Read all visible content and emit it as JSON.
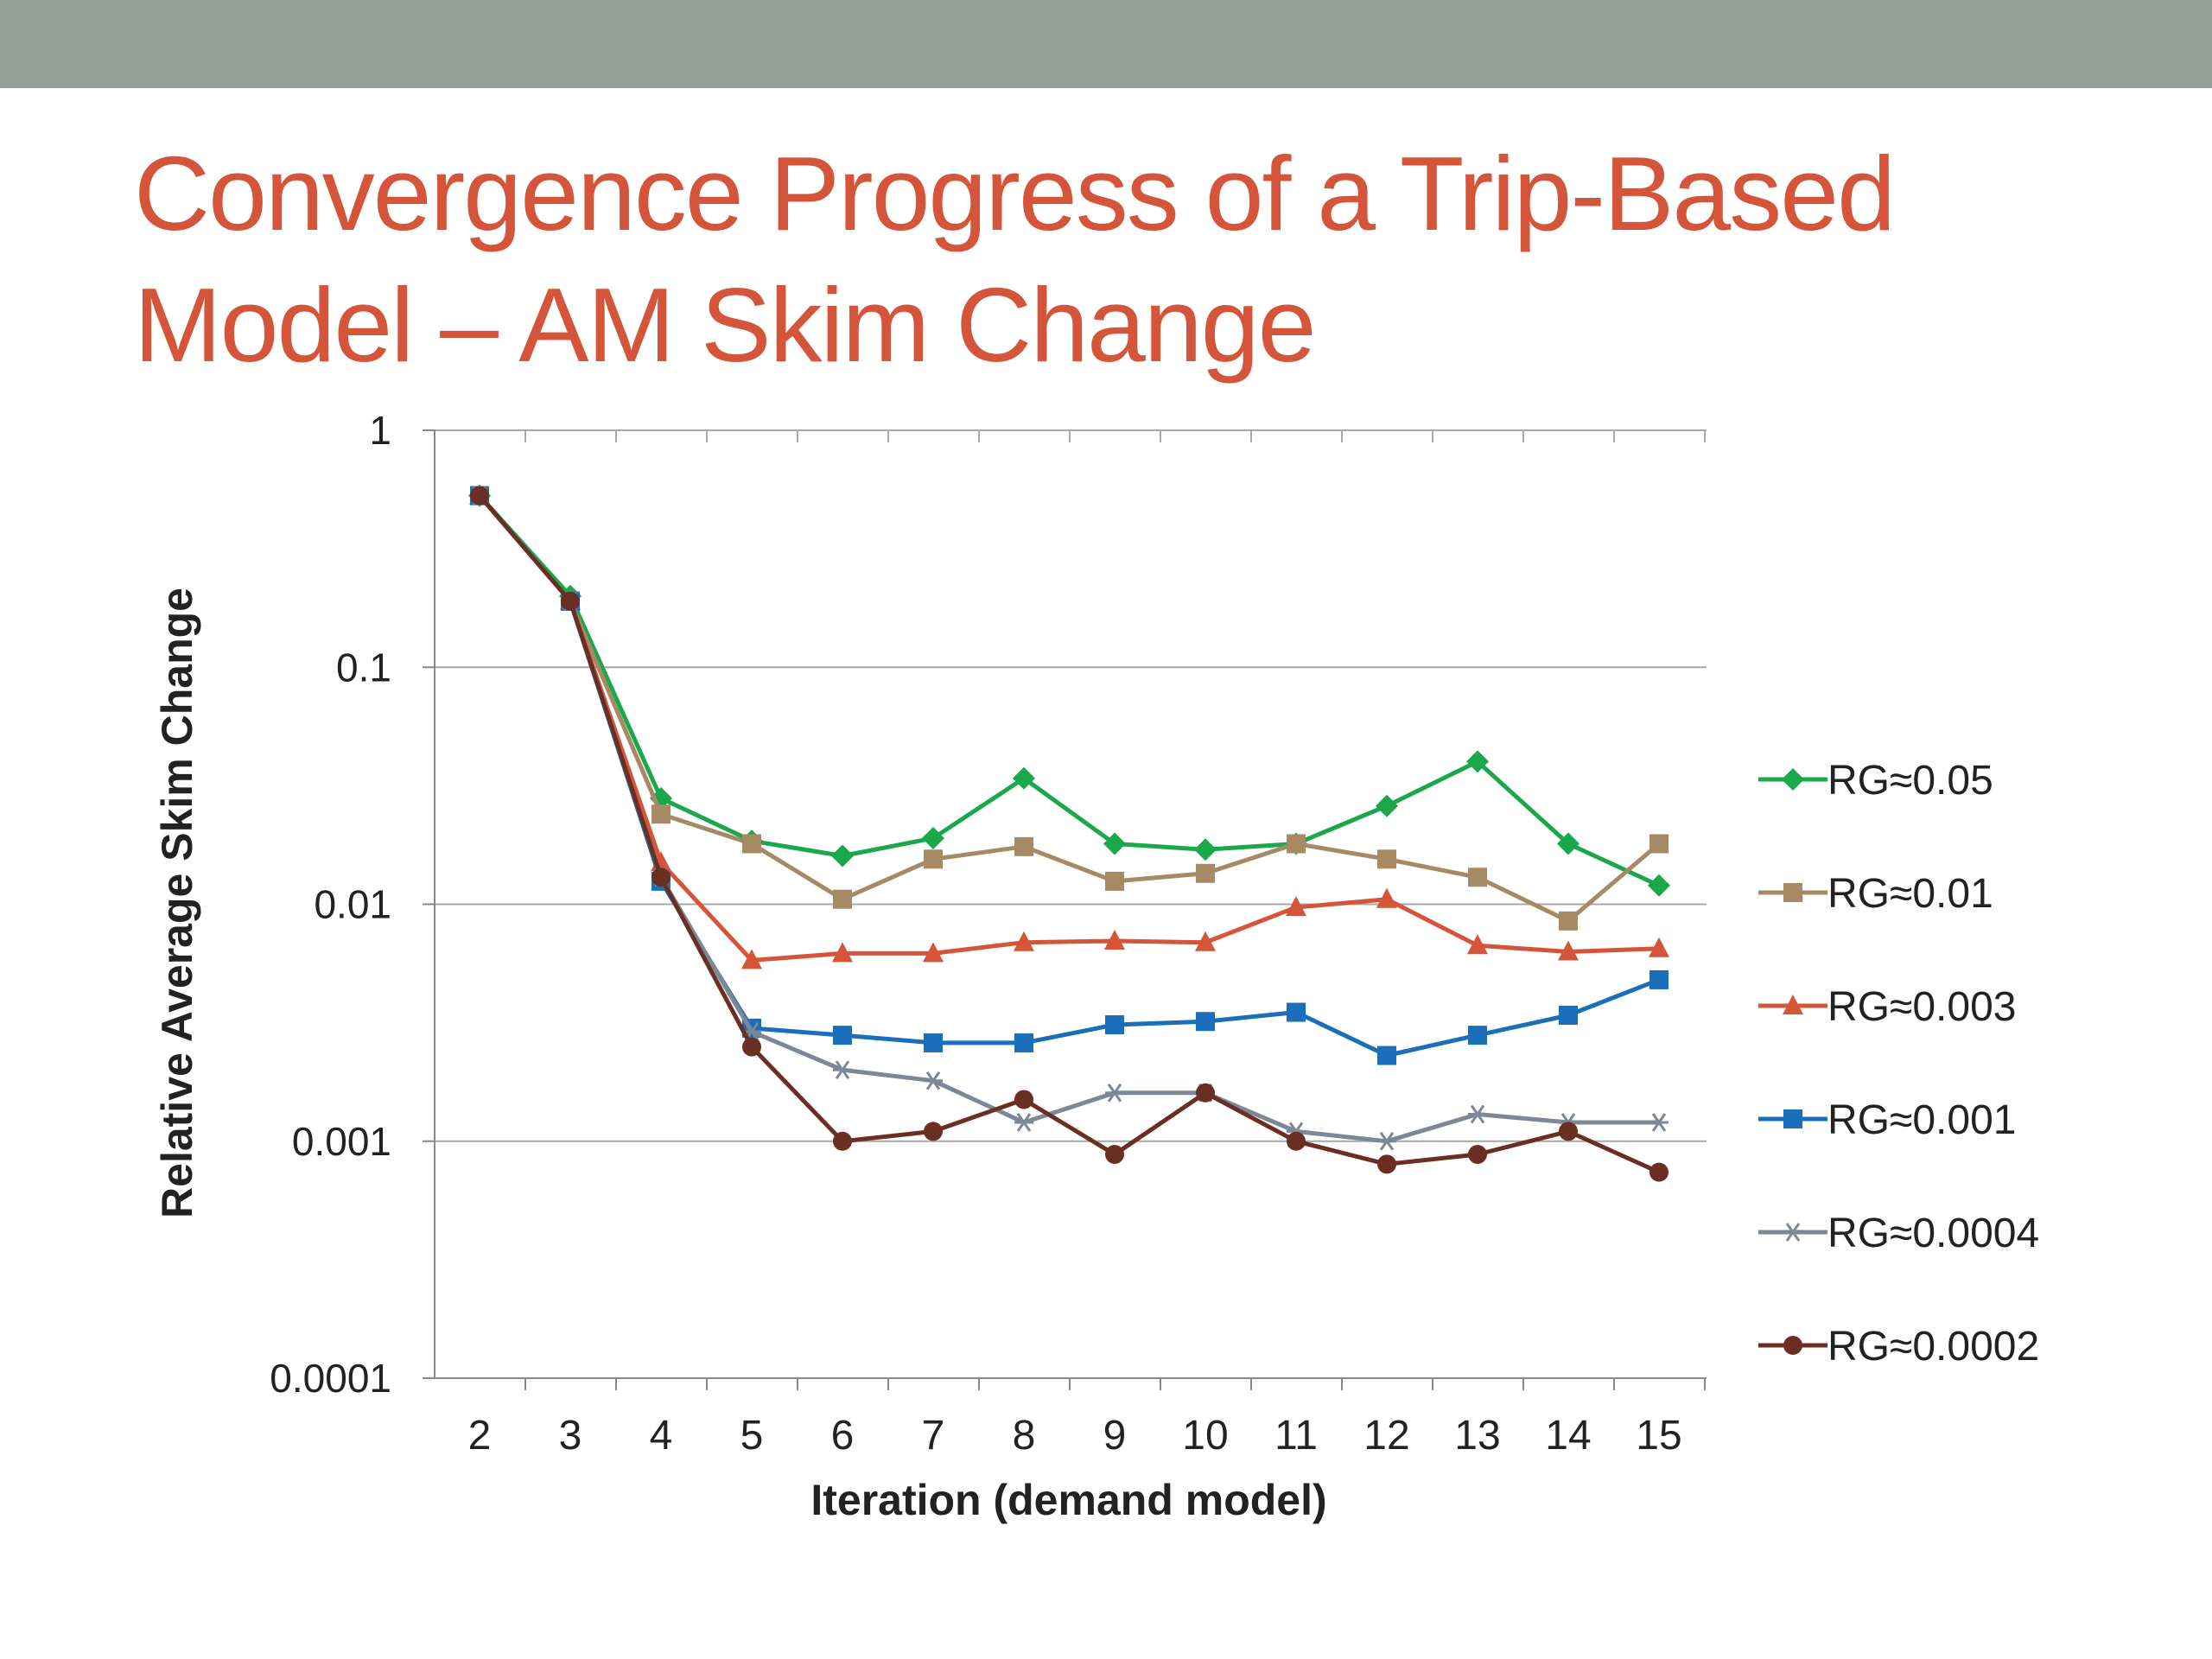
{
  "slide": {
    "title_line1": "Convergence Progress of a Trip-Based",
    "title_line2": "Model – AM Skim Change",
    "header_bar_color": "#93a199",
    "title_color": "#d4553a"
  },
  "chart_data": {
    "type": "line",
    "title": "",
    "xlabel": "Iteration (demand model)",
    "ylabel": "Relative Average Skim Change",
    "y_scale": "log",
    "ylim": [
      0.0001,
      1
    ],
    "y_ticks": [
      "1",
      "0.1",
      "0.01",
      "0.001",
      "0.0001"
    ],
    "x": [
      2,
      3,
      4,
      5,
      6,
      7,
      8,
      9,
      10,
      11,
      12,
      13,
      14,
      15
    ],
    "grid": "horizontal major gridlines",
    "legend_position": "right",
    "series": [
      {
        "name": "RG≈0.05",
        "color": "#1aa84a",
        "marker": "diamond",
        "values": [
          0.53,
          0.2,
          0.028,
          0.0185,
          0.016,
          0.019,
          0.034,
          0.018,
          0.017,
          0.018,
          0.026,
          0.04,
          0.018,
          0.012
        ]
      },
      {
        "name": "RG≈0.01",
        "color": "#a68a66",
        "marker": "square",
        "values": [
          0.53,
          0.19,
          0.024,
          0.018,
          0.0105,
          0.0155,
          0.0175,
          0.0125,
          0.0135,
          0.018,
          0.0155,
          0.013,
          0.0085,
          0.018
        ]
      },
      {
        "name": "RG≈0.003",
        "color": "#d4553a",
        "marker": "triangle",
        "values": [
          0.53,
          0.19,
          0.015,
          0.0058,
          0.0062,
          0.0062,
          0.0069,
          0.007,
          0.0069,
          0.0097,
          0.0105,
          0.0067,
          0.0063,
          0.0065
        ]
      },
      {
        "name": "RG≈0.001",
        "color": "#1b6fba",
        "marker": "square",
        "values": [
          0.53,
          0.19,
          0.0125,
          0.003,
          0.0028,
          0.0026,
          0.0026,
          0.0031,
          0.0032,
          0.0035,
          0.0023,
          0.0028,
          0.0034,
          0.0048
        ]
      },
      {
        "name": "RG≈0.0004",
        "color": "#7c8896",
        "marker": "star",
        "values": [
          0.53,
          0.19,
          0.013,
          0.0029,
          0.002,
          0.0018,
          0.0012,
          0.0016,
          0.0016,
          0.0011,
          0.001,
          0.0013,
          0.0012,
          0.0012
        ]
      },
      {
        "name": "RG≈0.0002",
        "color": "#6b2e22",
        "marker": "circle",
        "values": [
          0.53,
          0.19,
          0.013,
          0.0025,
          0.001,
          0.0011,
          0.0015,
          0.00088,
          0.0016,
          0.001,
          0.0008,
          0.00088,
          0.0011,
          0.00074
        ]
      }
    ]
  }
}
